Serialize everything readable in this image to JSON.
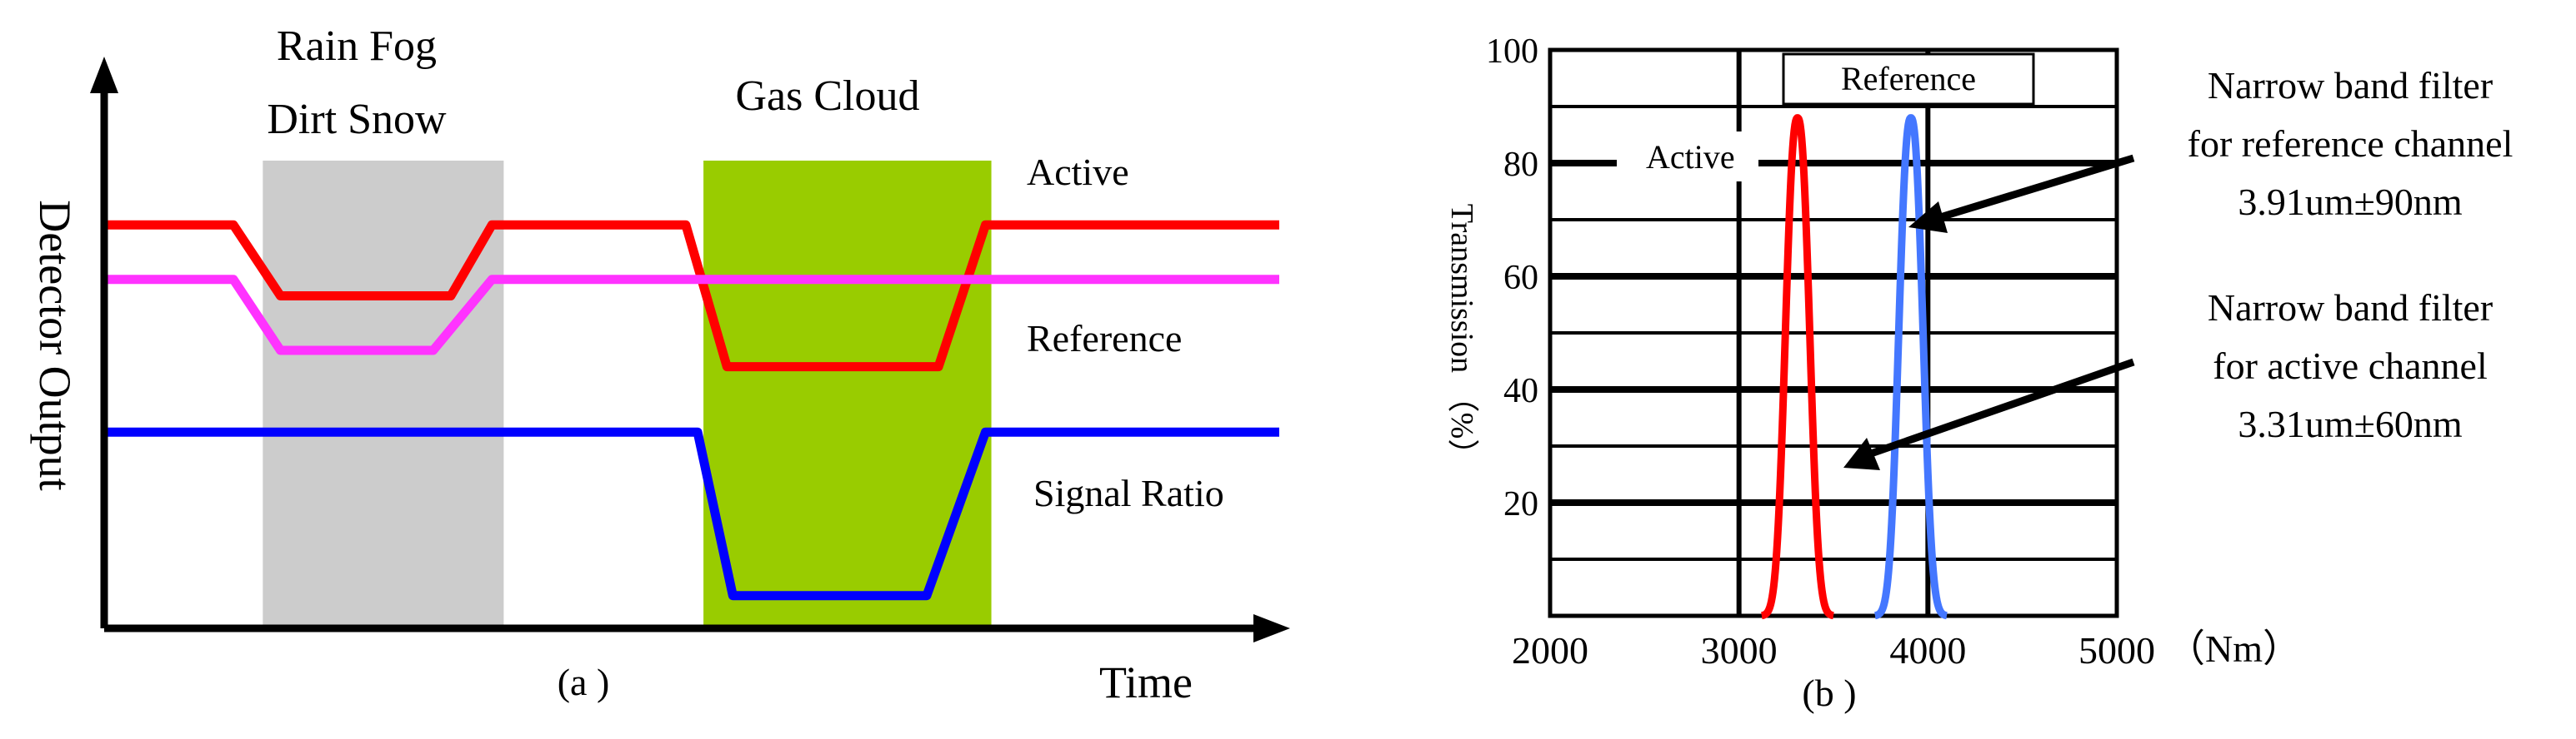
{
  "colors": {
    "active": "#ff0000",
    "reference": "#ff33ff",
    "signal_ratio": "#0000ff",
    "interference_region": "#cccccc",
    "gas_region": "#99cc00",
    "reference_peak": "#4477ff"
  },
  "chart_data": [
    {
      "type": "line",
      "panel_label": "(a )",
      "xlabel": "Time",
      "ylabel": "Detector Output",
      "regions": [
        {
          "name": "interference",
          "label_lines": [
            "Rain Fog",
            "Dirt Snow"
          ],
          "x_range": [
            1.35,
            3.4
          ],
          "color": "#cccccc"
        },
        {
          "name": "gas",
          "label_lines": [
            "Gas Cloud"
          ],
          "x_range": [
            5.1,
            7.55
          ],
          "color": "#99cc00"
        }
      ],
      "series": [
        {
          "name": "Active",
          "color": "#ff0000",
          "x": [
            0,
            1.1,
            1.5,
            2.95,
            3.3,
            4.95,
            5.3,
            7.1,
            7.5,
            10
          ],
          "y": [
            7.4,
            7.4,
            6.1,
            6.1,
            7.4,
            7.4,
            4.8,
            4.8,
            7.4,
            7.4
          ]
        },
        {
          "name": "Reference",
          "color": "#ff33ff",
          "x": [
            0,
            1.1,
            1.5,
            2.8,
            3.3,
            10
          ],
          "y": [
            6.4,
            6.4,
            5.1,
            5.1,
            6.4,
            6.4
          ]
        },
        {
          "name": "Signal Ratio",
          "color": "#0000ff",
          "x": [
            0,
            5.05,
            5.35,
            7.0,
            7.5,
            10
          ],
          "y": [
            3.6,
            3.6,
            0.6,
            0.6,
            3.6,
            3.6
          ]
        }
      ],
      "xlim": [
        0,
        10
      ],
      "ylim": [
        0,
        10
      ]
    },
    {
      "type": "line",
      "panel_label": "(b )",
      "xlabel": "（Nm）",
      "ylabel": "Transmission （%）",
      "xlim": [
        2000,
        5000
      ],
      "ylim": [
        0,
        100
      ],
      "x_ticks": [
        2000,
        3000,
        4000,
        5000
      ],
      "x_tick_labels": [
        "2000",
        "3000",
        "4000",
        "5000"
      ],
      "y_ticks": [
        20,
        40,
        60,
        80,
        100
      ],
      "y_tick_labels": [
        "20",
        "40",
        "60",
        "80",
        "100"
      ],
      "legend": [
        {
          "label": "Active",
          "color": "#ff0000"
        },
        {
          "label": "Reference",
          "color": "#4477ff"
        }
      ],
      "series": [
        {
          "name": "Active",
          "color": "#ff0000",
          "center": 3310,
          "peak": 88,
          "halfwidth": 120
        },
        {
          "name": "Reference",
          "color": "#4477ff",
          "center": 3910,
          "peak": 88,
          "halfwidth": 120
        }
      ],
      "annotations": [
        {
          "lines": [
            "Narrow band filter",
            "for reference channel",
            "3.91um±90nm"
          ],
          "points_to": "Reference"
        },
        {
          "lines": [
            "Narrow band filter",
            "for active channel",
            "3.31um±60nm"
          ],
          "points_to": "Active"
        }
      ]
    }
  ]
}
